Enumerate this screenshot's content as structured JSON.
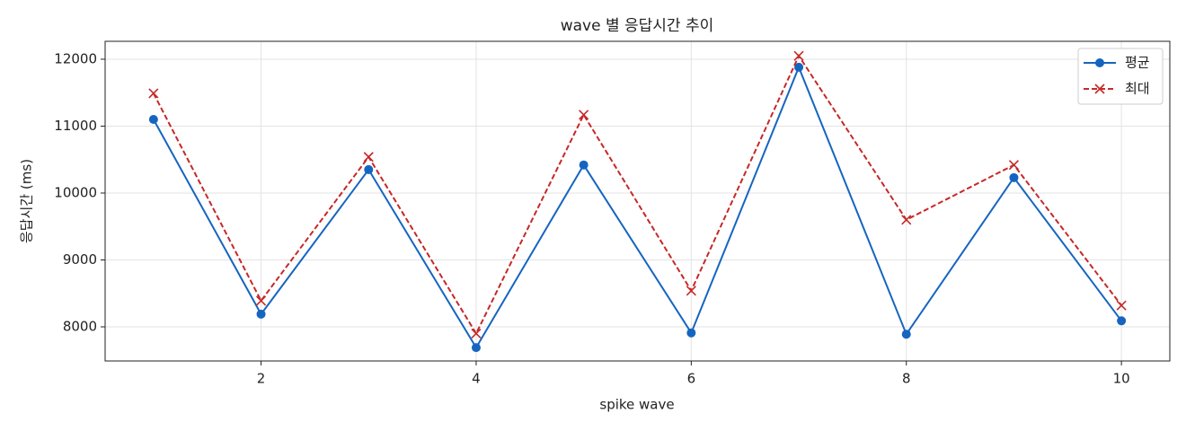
{
  "chart_data": {
    "type": "line",
    "title": "wave 별 응답시간 추이",
    "x_label": "spike wave",
    "y_label": "응답시간 (ms)",
    "x": [
      1,
      2,
      3,
      4,
      5,
      6,
      7,
      8,
      9,
      10
    ],
    "series": [
      {
        "name": "평균",
        "color": "#1565c0",
        "marker": "o",
        "linestyle": "-",
        "values": [
          11100,
          8190,
          10350,
          7690,
          10420,
          7910,
          11880,
          7890,
          10230,
          8090
        ]
      },
      {
        "name": "최대",
        "color": "#c62828",
        "marker": "x",
        "linestyle": "--",
        "values": [
          11490,
          8390,
          10540,
          7900,
          11170,
          8540,
          12050,
          9600,
          10420,
          8320
        ]
      }
    ],
    "xlim": [
      0.55,
      10.45
    ],
    "ylim": [
      7490,
      12268
    ],
    "xticks": [
      2,
      4,
      6,
      8,
      10
    ],
    "yticks": [
      8000,
      9000,
      10000,
      11000,
      12000
    ],
    "grid": true,
    "legend": "upper right"
  }
}
